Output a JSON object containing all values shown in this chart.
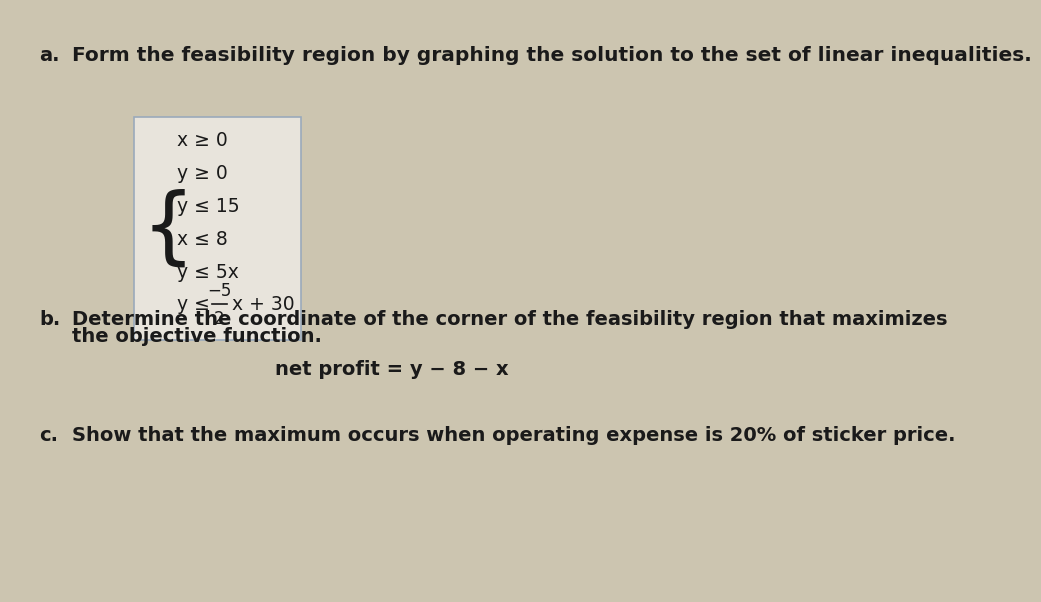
{
  "part_a_label": "a.",
  "part_a_text": "Form the feasibility region by graphing the solution to the set of linear inequalities.",
  "system_lines_plain": [
    "x ≥ 0",
    "y ≥ 0",
    "y ≤ 15",
    "x ≤ 8",
    "y ≤ 5x"
  ],
  "last_line_parts": [
    "y ≤ ",
    "−5",
    "———x + 30",
    "2"
  ],
  "part_b_label": "b.",
  "part_b_line1": "Determine the coordinate of the corner of the feasibility region that maximizes",
  "part_b_line2": "the objective function.",
  "objective_label": "net profit = y − 8 − x",
  "part_c_label": "c.",
  "part_c_text": "Show that the maximum occurs when operating expense is 20% of sticker price.",
  "background_color": "#ccc5b0",
  "box_bg_color": "#e8e4dc",
  "box_edge_color": "#9aaabb",
  "text_color": "#1a1a1a",
  "font_size_title": 14.5,
  "font_size_label": 14,
  "font_size_system": 13.5,
  "font_size_b": 14,
  "font_size_obj": 14,
  "font_size_c": 14
}
